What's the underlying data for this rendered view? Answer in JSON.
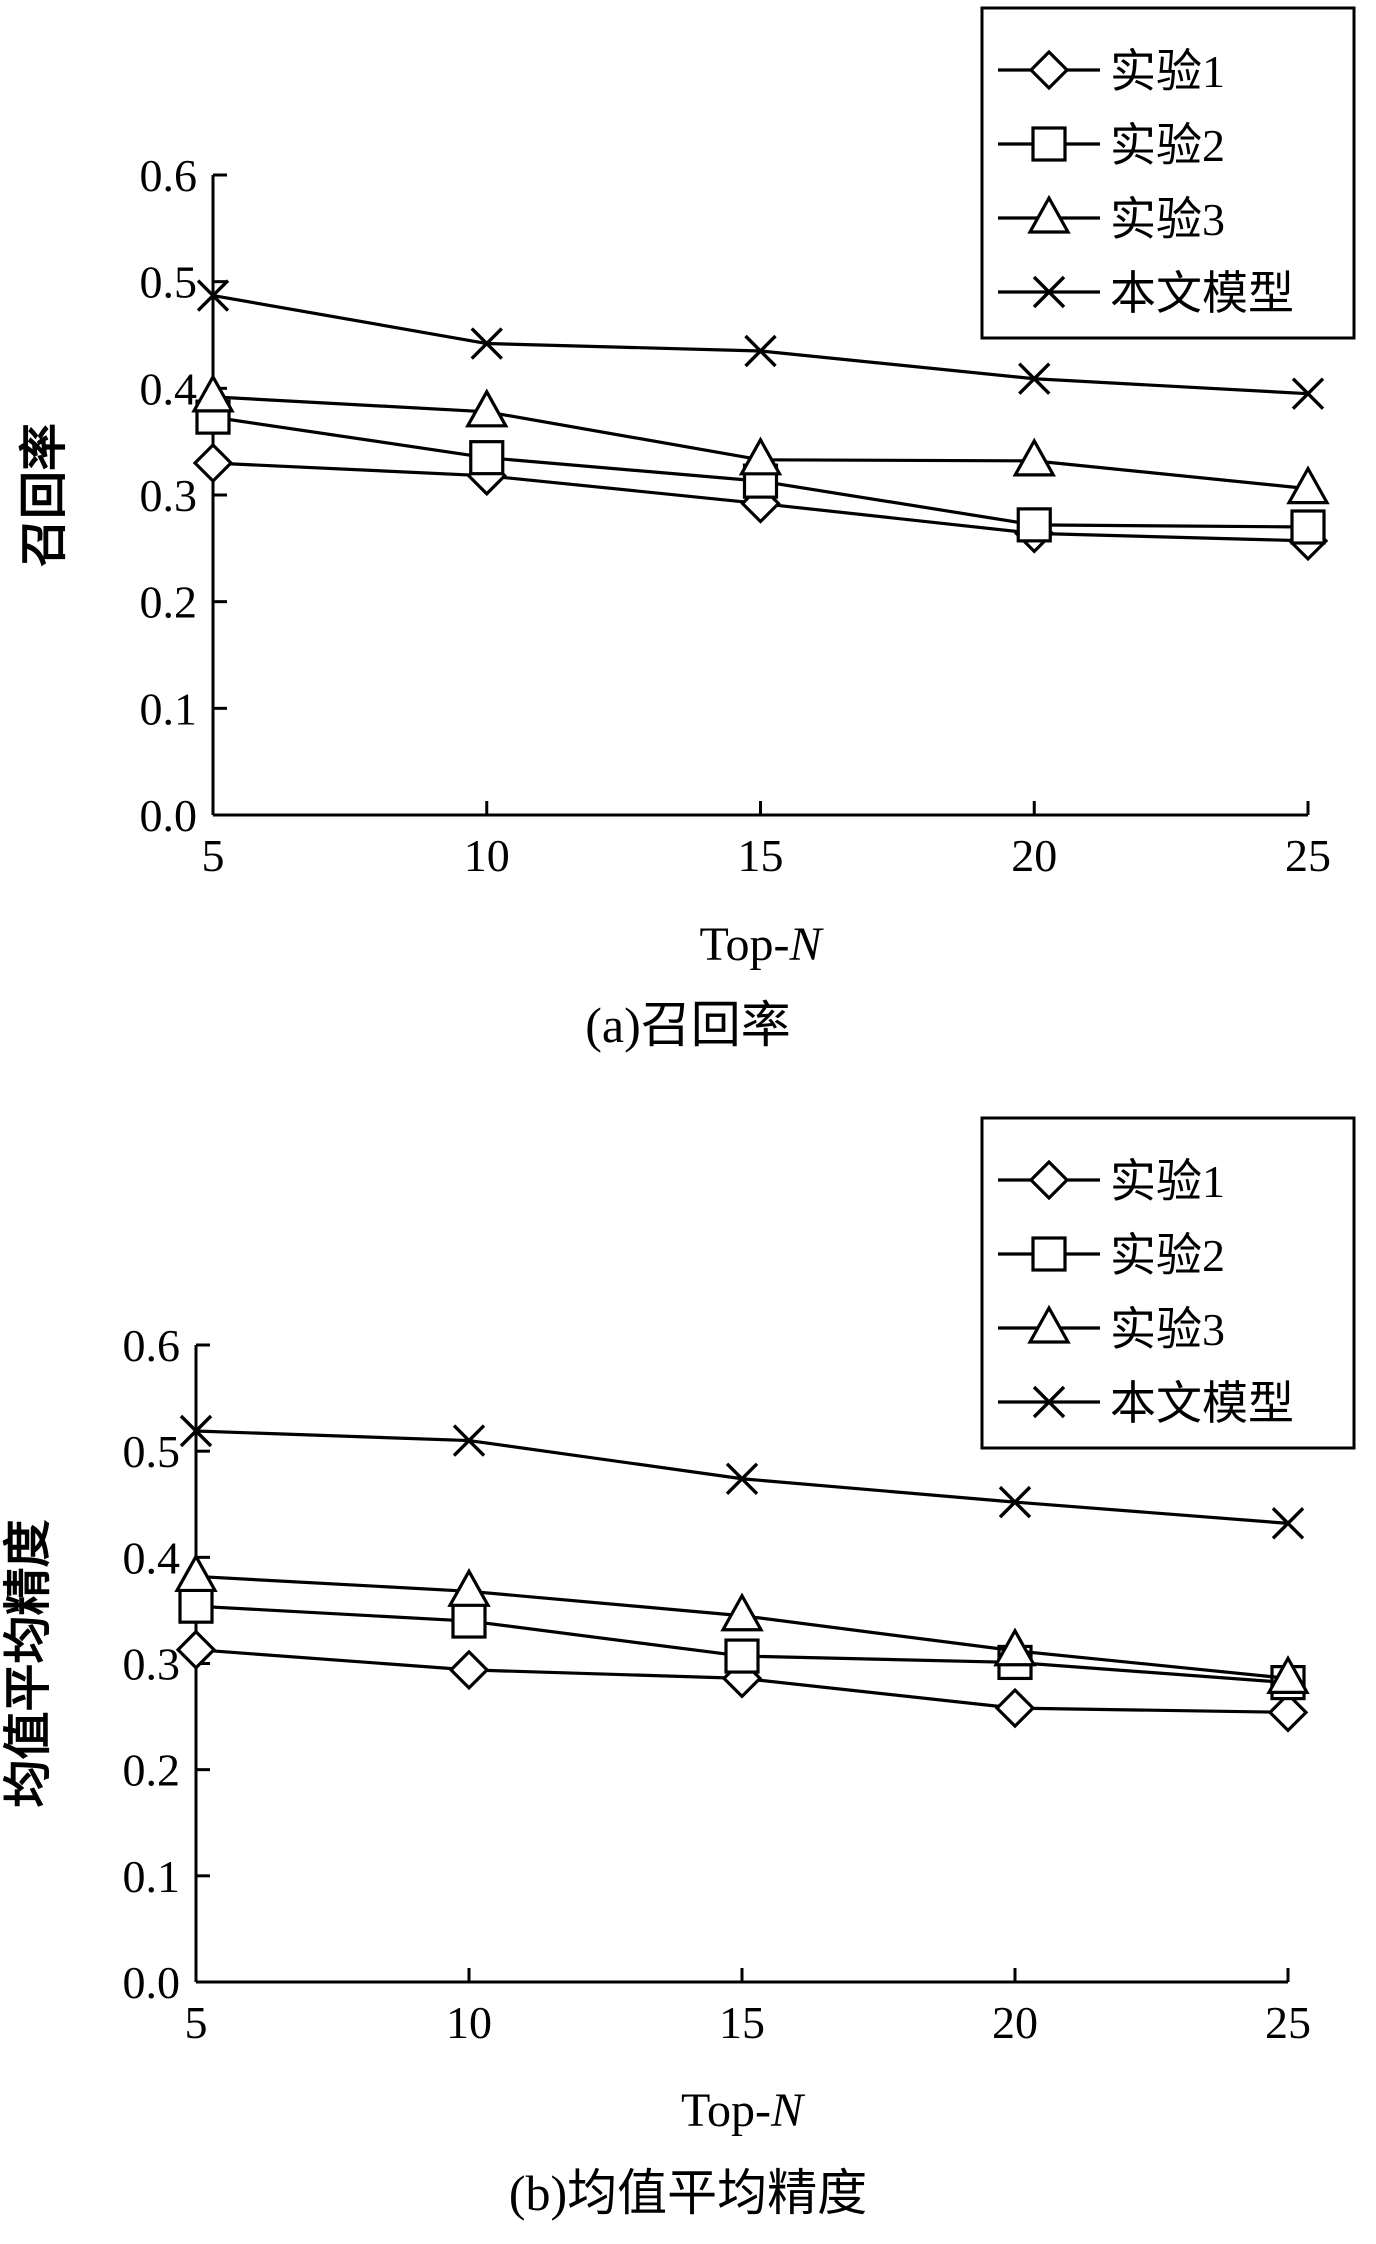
{
  "chart_data": [
    {
      "type": "line",
      "x": [
        5,
        10,
        15,
        20,
        25
      ],
      "xlabel": "Top-N",
      "xlabel_main": "Top-",
      "xlabel_italic": "N",
      "ylabel": "召回率",
      "caption": "(a)召回率",
      "ylim": [
        0.0,
        0.6
      ],
      "y_ticks": [
        "0.0",
        "0.1",
        "0.2",
        "0.3",
        "0.4",
        "0.5",
        "0.6"
      ],
      "x_ticks": [
        "5",
        "10",
        "15",
        "20",
        "25"
      ],
      "grid": false,
      "legend_position": "top-right",
      "series": [
        {
          "name": "实验1",
          "marker": "diamond",
          "values": [
            0.33,
            0.318,
            0.292,
            0.264,
            0.257
          ]
        },
        {
          "name": "实验2",
          "marker": "square",
          "values": [
            0.373,
            0.335,
            0.313,
            0.272,
            0.27
          ]
        },
        {
          "name": "实验3",
          "marker": "triangle",
          "values": [
            0.392,
            0.378,
            0.333,
            0.332,
            0.306
          ]
        },
        {
          "name": "本文模型",
          "marker": "x",
          "values": [
            0.487,
            0.442,
            0.435,
            0.409,
            0.395
          ]
        }
      ]
    },
    {
      "type": "line",
      "x": [
        5,
        10,
        15,
        20,
        25
      ],
      "xlabel": "Top-N",
      "xlabel_main": "Top-",
      "xlabel_italic": "N",
      "ylabel": "均值平均精度",
      "caption": "(b)均值平均精度",
      "ylim": [
        0.0,
        0.6
      ],
      "y_ticks": [
        "0.0",
        "0.1",
        "0.2",
        "0.3",
        "0.4",
        "0.5",
        "0.6"
      ],
      "x_ticks": [
        "5",
        "10",
        "15",
        "20",
        "25"
      ],
      "grid": false,
      "legend_position": "top-right",
      "series": [
        {
          "name": "实验1",
          "marker": "diamond",
          "values": [
            0.313,
            0.294,
            0.286,
            0.258,
            0.254
          ]
        },
        {
          "name": "实验2",
          "marker": "square",
          "values": [
            0.354,
            0.34,
            0.307,
            0.301,
            0.282
          ]
        },
        {
          "name": "实验3",
          "marker": "triangle",
          "values": [
            0.382,
            0.368,
            0.345,
            0.312,
            0.286
          ]
        },
        {
          "name": "本文模型",
          "marker": "x",
          "values": [
            0.519,
            0.51,
            0.474,
            0.452,
            0.432
          ]
        }
      ]
    }
  ]
}
